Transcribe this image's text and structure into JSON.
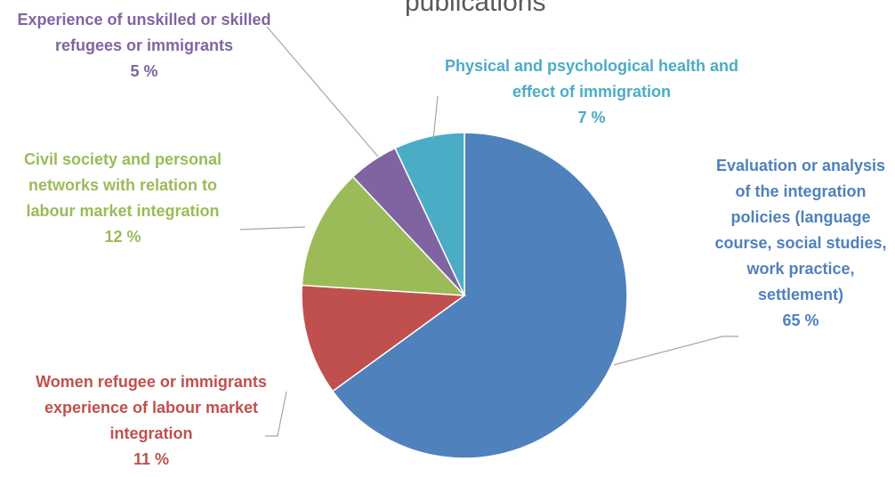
{
  "chart_data": {
    "type": "pie",
    "title": "publications",
    "categories": [
      "Evaluation or analysis of the integration policies (language course, social studies, work practice, settlement)",
      "Women refugee or immigrants experience of labour market integration",
      "Civil society and personal networks with relation to labour market integration",
      "Experience of unskilled or skilled refugees or immigrants",
      "Physical and psychological health and effect of immigration"
    ],
    "values": [
      65,
      11,
      12,
      5,
      7
    ],
    "value_labels": [
      "65 %",
      "11 %",
      "12 %",
      "5 %",
      "7 %"
    ],
    "colors": [
      "#4f81bd",
      "#c0504d",
      "#9bbb59",
      "#8064a2",
      "#4bacc6"
    ]
  }
}
